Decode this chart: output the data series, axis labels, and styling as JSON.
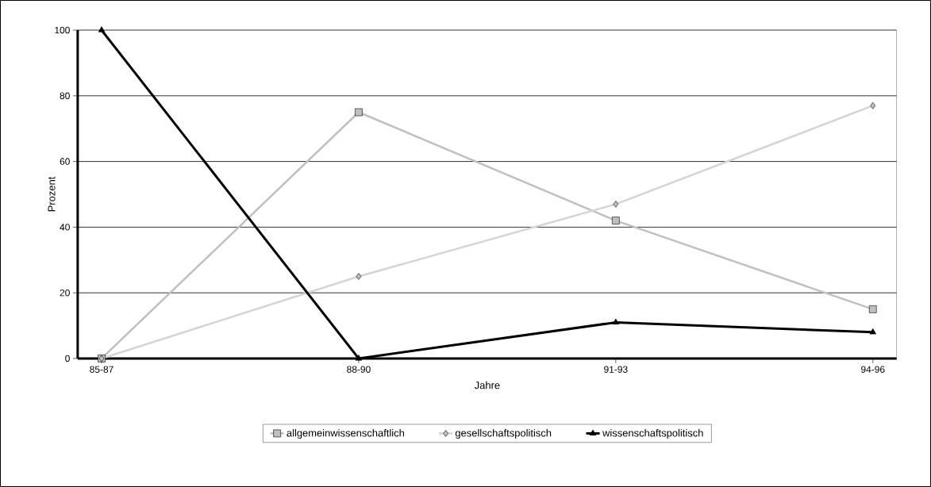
{
  "chart_data": {
    "type": "line",
    "xlabel": "Jahre",
    "ylabel": "Prozent",
    "categories": [
      "85-87",
      "88-90",
      "91-93",
      "94-96"
    ],
    "series": [
      {
        "name": "allgemeinwissenschaftlich",
        "color": "#c0c0c0",
        "marker": "square",
        "values": [
          0,
          75,
          42,
          15
        ]
      },
      {
        "name": "gesellschaftspolitisch",
        "color": "#d4d4d4",
        "marker": "diamond",
        "values": [
          0,
          25,
          47,
          77
        ]
      },
      {
        "name": "wissenschaftspolitisch",
        "color": "#000000",
        "marker": "triangle",
        "values": [
          100,
          0,
          11,
          8
        ]
      }
    ],
    "ylim": [
      0,
      100
    ],
    "yticks": [
      0,
      20,
      40,
      60,
      80,
      100
    ],
    "grid": "y",
    "legend": "bottom",
    "line_style": "solid"
  }
}
